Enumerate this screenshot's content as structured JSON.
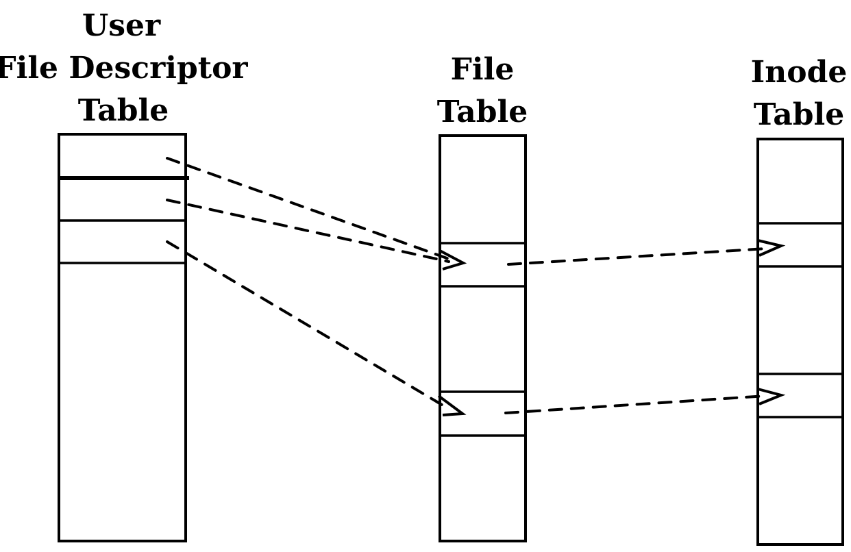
{
  "tables": {
    "ufdt": {
      "title_lines": [
        "User",
        "File Descriptor",
        "Table"
      ]
    },
    "file": {
      "title_lines": [
        "File",
        "Table"
      ]
    },
    "inode": {
      "title_lines": [
        "Inode",
        "Table"
      ]
    }
  },
  "pointers": [
    {
      "from": "ufdt.entry.1",
      "to": "file.entry.1"
    },
    {
      "from": "ufdt.entry.2",
      "to": "file.entry.1"
    },
    {
      "from": "ufdt.entry.3",
      "to": "file.entry.2"
    },
    {
      "from": "file.entry.1",
      "to": "inode.entry.1"
    },
    {
      "from": "file.entry.2",
      "to": "inode.entry.2"
    }
  ],
  "colors": {
    "ink": "#000000",
    "paper": "#ffffff"
  }
}
